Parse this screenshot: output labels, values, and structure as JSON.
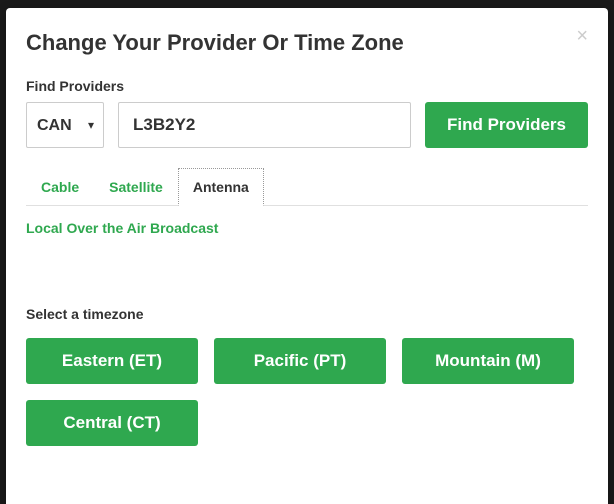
{
  "modal": {
    "title": "Change Your Provider Or Time Zone",
    "close": "×"
  },
  "findProviders": {
    "label": "Find Providers",
    "country": "CAN",
    "zip": "L3B2Y2",
    "button": "Find Providers"
  },
  "tabs": {
    "items": [
      {
        "label": "Cable",
        "active": false
      },
      {
        "label": "Satellite",
        "active": false
      },
      {
        "label": "Antenna",
        "active": true
      }
    ]
  },
  "broadcast": {
    "label": "Local Over the Air Broadcast"
  },
  "timezone": {
    "label": "Select a timezone",
    "options": [
      {
        "label": "Eastern (ET)"
      },
      {
        "label": "Pacific (PT)"
      },
      {
        "label": "Mountain (M)"
      },
      {
        "label": "Central (CT)"
      }
    ]
  },
  "colors": {
    "accent": "#2fa84f",
    "text": "#333333",
    "border": "#cccccc",
    "bg": "#ffffff"
  }
}
